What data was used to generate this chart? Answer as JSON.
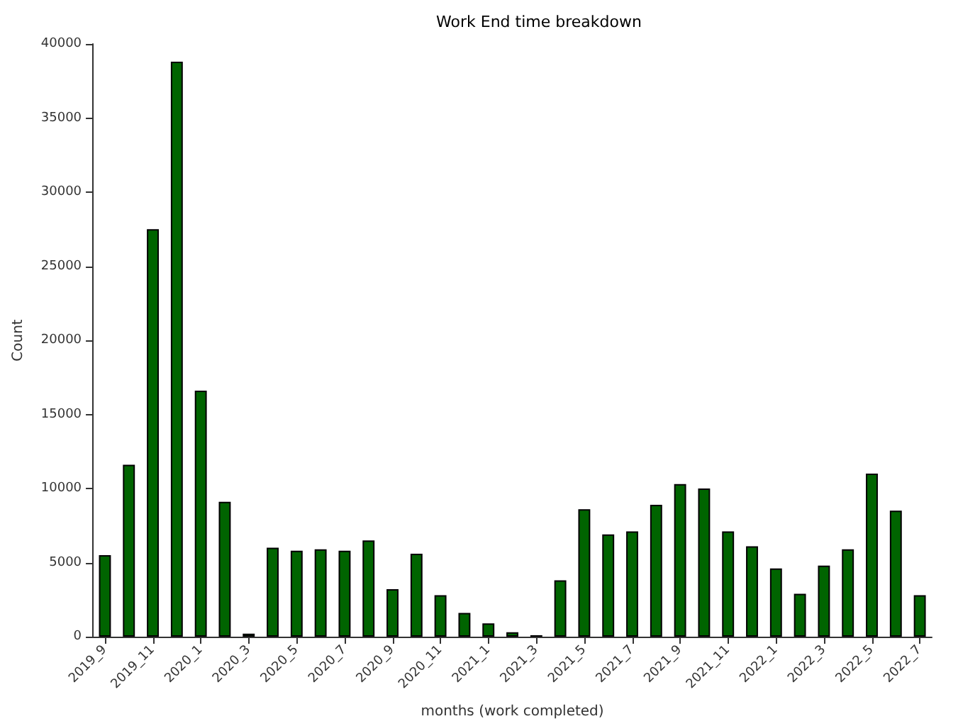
{
  "chart_data": {
    "type": "bar",
    "title": "Work End time breakdown",
    "xlabel": "months (work completed)",
    "ylabel": "Count",
    "categories": [
      "2019_9",
      null,
      "2019_11",
      null,
      "2020_1",
      null,
      "2020_3",
      null,
      "2020_5",
      null,
      "2020_7",
      null,
      "2020_9",
      null,
      "2020_11",
      null,
      "2021_1",
      null,
      "2021_3",
      null,
      "2021_5",
      null,
      "2021_7",
      null,
      "2021_9",
      null,
      "2021_11",
      null,
      "2022_1",
      null,
      "2022_3",
      null,
      "2022_5",
      null,
      "2022_7"
    ],
    "values": [
      5500,
      11600,
      27500,
      38800,
      16600,
      9100,
      200,
      6000,
      5800,
      5900,
      5800,
      6500,
      3200,
      5600,
      2800,
      1600,
      900,
      300,
      100,
      3800,
      8600,
      6900,
      7100,
      8900,
      10300,
      10000,
      7100,
      6100,
      4600,
      2900,
      4800,
      5900,
      11000,
      8500,
      2800
    ],
    "color": "#006400",
    "ylim": [
      0,
      40000
    ],
    "yticks": [
      0,
      5000,
      10000,
      15000,
      20000,
      25000,
      30000,
      35000,
      40000
    ],
    "grid": false
  }
}
